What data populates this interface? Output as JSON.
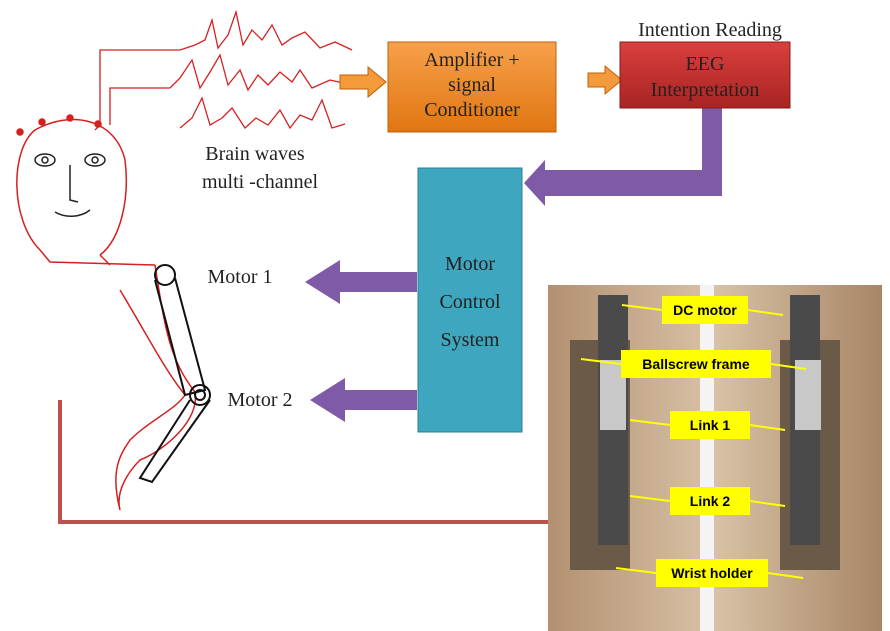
{
  "header": {
    "intention": "Intention Reading"
  },
  "nodes": [
    {
      "lines": [
        "Amplifier +",
        "signal",
        "Conditioner"
      ]
    },
    {
      "lines": [
        "EEG",
        "Interpretation"
      ]
    },
    {
      "lines": [
        "Motor",
        "Control",
        "System"
      ]
    }
  ],
  "labels": {
    "brain_waves": [
      "Brain waves",
      "multi -channel"
    ],
    "motor1": "Motor 1",
    "motor2": "Motor 2"
  },
  "photo_labels": [
    "DC motor",
    "Ballscrew frame",
    "Link 1",
    "Link 2",
    "Wrist holder"
  ]
}
